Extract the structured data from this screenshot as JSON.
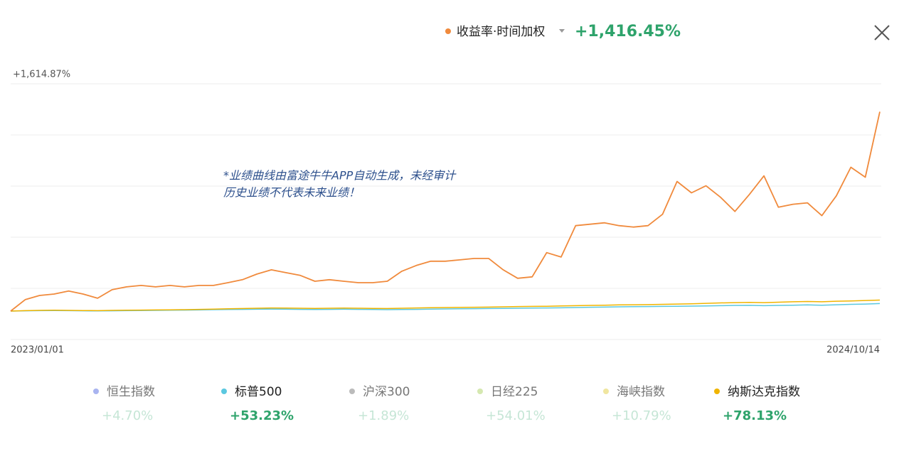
{
  "chart_data": {
    "type": "line",
    "annotation": [
      "*业绩曲线由富途牛牛APP自动生成，未经审计",
      "历史业绩不代表未来业绩！"
    ],
    "categories": [
      "2023/01/01",
      null,
      null,
      null,
      null,
      null,
      null,
      null,
      null,
      null,
      null,
      null,
      null,
      null,
      null,
      null,
      null,
      null,
      null,
      null,
      null,
      null,
      null,
      null,
      null,
      null,
      null,
      null,
      null,
      null,
      null,
      null,
      null,
      null,
      null,
      null,
      null,
      null,
      null,
      null,
      null,
      null,
      null,
      null,
      null,
      null,
      null,
      null,
      null,
      null,
      null,
      null,
      null,
      null,
      null,
      null,
      null,
      null,
      null,
      null,
      "2024/10/14"
    ],
    "ylim": [
      -202,
      1614.87
    ],
    "yticks": [
      {
        "value": 1614.87,
        "label": "+1,614.87%"
      }
    ],
    "grid": true,
    "series": [
      {
        "name": "收益率·时间加权",
        "color": "#f08a3c",
        "active": true,
        "return_label": "+1,416.45%",
        "values": [
          0,
          81,
          111,
          121,
          142,
          121,
          91,
          152,
          172,
          182,
          172,
          182,
          172,
          182,
          182,
          202,
          223,
          263,
          293,
          273,
          253,
          212,
          223,
          212,
          202,
          202,
          212,
          283,
          324,
          354,
          354,
          364,
          374,
          374,
          293,
          233,
          243,
          415,
          384,
          607,
          617,
          627,
          607,
          597,
          607,
          688,
          921,
          840,
          890,
          809,
          708,
          829,
          961,
          738,
          759,
          769,
          678,
          819,
          1022,
          951,
          1416.45
        ]
      },
      {
        "name": "恒生指数",
        "color": "#a9b4f0",
        "active": false,
        "return_label": "+4.70%"
      },
      {
        "name": "标普500",
        "color": "#5bc8e0",
        "active": true,
        "return_label": "+53.23%",
        "values": [
          0,
          2,
          3,
          4,
          3,
          2,
          1,
          2,
          3,
          4,
          5,
          6,
          7,
          8,
          10,
          11,
          12,
          13,
          14,
          13,
          12,
          11,
          12,
          13,
          12,
          11,
          10,
          11,
          12,
          14,
          15,
          16,
          17,
          18,
          19,
          20,
          21,
          22,
          23,
          25,
          27,
          28,
          30,
          31,
          32,
          33,
          34,
          35,
          36,
          38,
          40,
          41,
          38,
          40,
          42,
          44,
          42,
          45,
          48,
          50,
          53.23
        ]
      },
      {
        "name": "沪深300",
        "color": "#bbbbbb",
        "active": false,
        "return_label": "+1.89%"
      },
      {
        "name": "日经225",
        "color": "#d5e8b0",
        "active": false,
        "return_label": "+54.01%"
      },
      {
        "name": "海峡指数",
        "color": "#f0e6a0",
        "active": false,
        "return_label": "+10.79%"
      },
      {
        "name": "纳斯达克指数",
        "color": "#f0b400",
        "active": true,
        "return_label": "+78.13%",
        "values": [
          0,
          3,
          5,
          6,
          5,
          4,
          3,
          5,
          6,
          7,
          8,
          9,
          10,
          12,
          14,
          16,
          18,
          20,
          22,
          21,
          20,
          19,
          20,
          21,
          20,
          19,
          18,
          20,
          22,
          24,
          25,
          26,
          27,
          28,
          30,
          32,
          33,
          34,
          36,
          38,
          40,
          42,
          44,
          45,
          46,
          48,
          50,
          52,
          55,
          58,
          60,
          62,
          60,
          63,
          66,
          68,
          66,
          70,
          72,
          75,
          78.13
        ]
      }
    ]
  }
}
